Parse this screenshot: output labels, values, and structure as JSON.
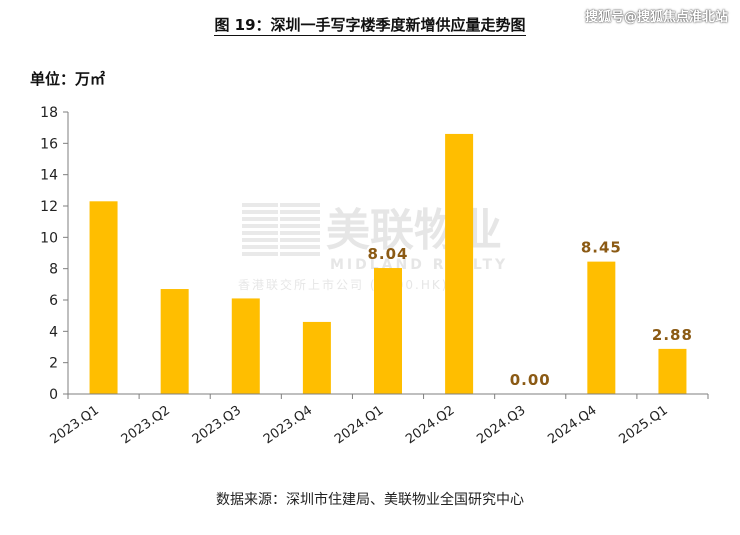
{
  "header": {
    "title": "图 19：深圳一手写字楼季度新增供应量走势图",
    "corner_mark": "搜狐号@搜狐焦点淮北站",
    "unit_label": "单位：万㎡"
  },
  "watermark": {
    "cn": "美联物业",
    "en": "MIDLAND REALTY",
    "sub": "香港联交所上市公司 (1200.HK)"
  },
  "footer": {
    "source": "数据来源：深圳市住建局、美联物业全国研究中心"
  },
  "chart_data": {
    "type": "bar",
    "title": "图 19：深圳一手写字楼季度新增供应量走势图",
    "ylabel": "单位：万㎡",
    "xlabel": "",
    "categories": [
      "2023.Q1",
      "2023.Q2",
      "2023.Q3",
      "2023.Q4",
      "2024.Q1",
      "2024.Q2",
      "2024.Q3",
      "2024.Q4",
      "2025.Q1"
    ],
    "values": [
      12.3,
      6.7,
      6.1,
      4.6,
      8.04,
      16.6,
      0.0,
      8.45,
      2.88
    ],
    "data_labels": [
      "",
      "",
      "",
      "",
      "8.04",
      "",
      "0.00",
      "8.45",
      "2.88"
    ],
    "ylim": [
      0,
      18
    ],
    "yticks": [
      0,
      2,
      4,
      6,
      8,
      10,
      12,
      14,
      16,
      18
    ],
    "grid": false,
    "legend": "none",
    "colors": {
      "bar": "#FFBE00",
      "label": "#8B5A14",
      "axis": "#7F7F7F"
    }
  }
}
